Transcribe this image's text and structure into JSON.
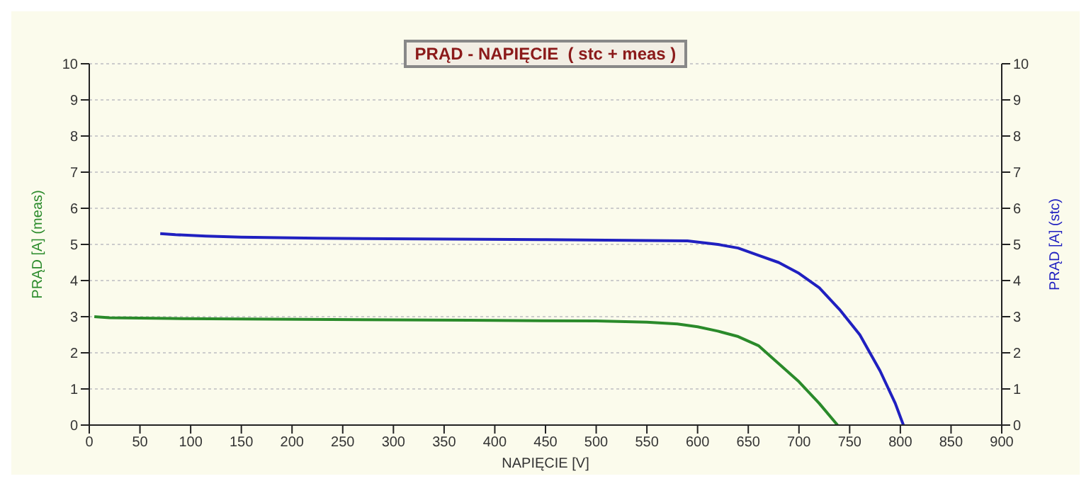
{
  "chart_data": {
    "type": "line",
    "title": "PRĄD - NAPIĘCIE  ( stc + meas )",
    "xlabel": "NAPIĘCIE [V]",
    "ylabel": "PRĄD [A]  (meas)",
    "y2label": "PRĄD [A]  (stc)",
    "series": [
      {
        "color": "#2a8a2a",
        "x": [
          5,
          20,
          80,
          375,
          500,
          550,
          580,
          600,
          620,
          640,
          660,
          680,
          700,
          720,
          738
        ],
        "values": [
          3.0,
          2.97,
          2.95,
          2.9,
          2.88,
          2.85,
          2.8,
          2.72,
          2.6,
          2.45,
          2.2,
          1.7,
          1.2,
          0.6,
          0
        ]
      },
      {
        "color": "#2020c0",
        "axis": "y2",
        "x": [
          70,
          85,
          115,
          150,
          225,
          450,
          590,
          620,
          640,
          660,
          680,
          700,
          720,
          740,
          760,
          780,
          795,
          803
        ],
        "values": [
          5.3,
          5.27,
          5.23,
          5.2,
          5.17,
          5.13,
          5.1,
          5.0,
          4.9,
          4.7,
          4.5,
          4.2,
          3.8,
          3.2,
          2.5,
          1.5,
          0.6,
          0
        ]
      }
    ],
    "xlim": [
      0,
      900
    ],
    "xticks": [
      0,
      50,
      100,
      150,
      200,
      250,
      300,
      350,
      400,
      450,
      500,
      550,
      600,
      650,
      700,
      750,
      800,
      850,
      900
    ],
    "ylim": [
      0,
      10
    ],
    "yticks": [
      0,
      1,
      2,
      3,
      4,
      5,
      6,
      7,
      8,
      9,
      10
    ],
    "y2lim": [
      0,
      10
    ],
    "y2ticks": [
      0,
      1,
      2,
      3,
      4,
      5,
      6,
      7,
      8,
      9,
      10
    ],
    "grid": "y",
    "legend": false,
    "marker": "none",
    "line_style": "solid"
  }
}
